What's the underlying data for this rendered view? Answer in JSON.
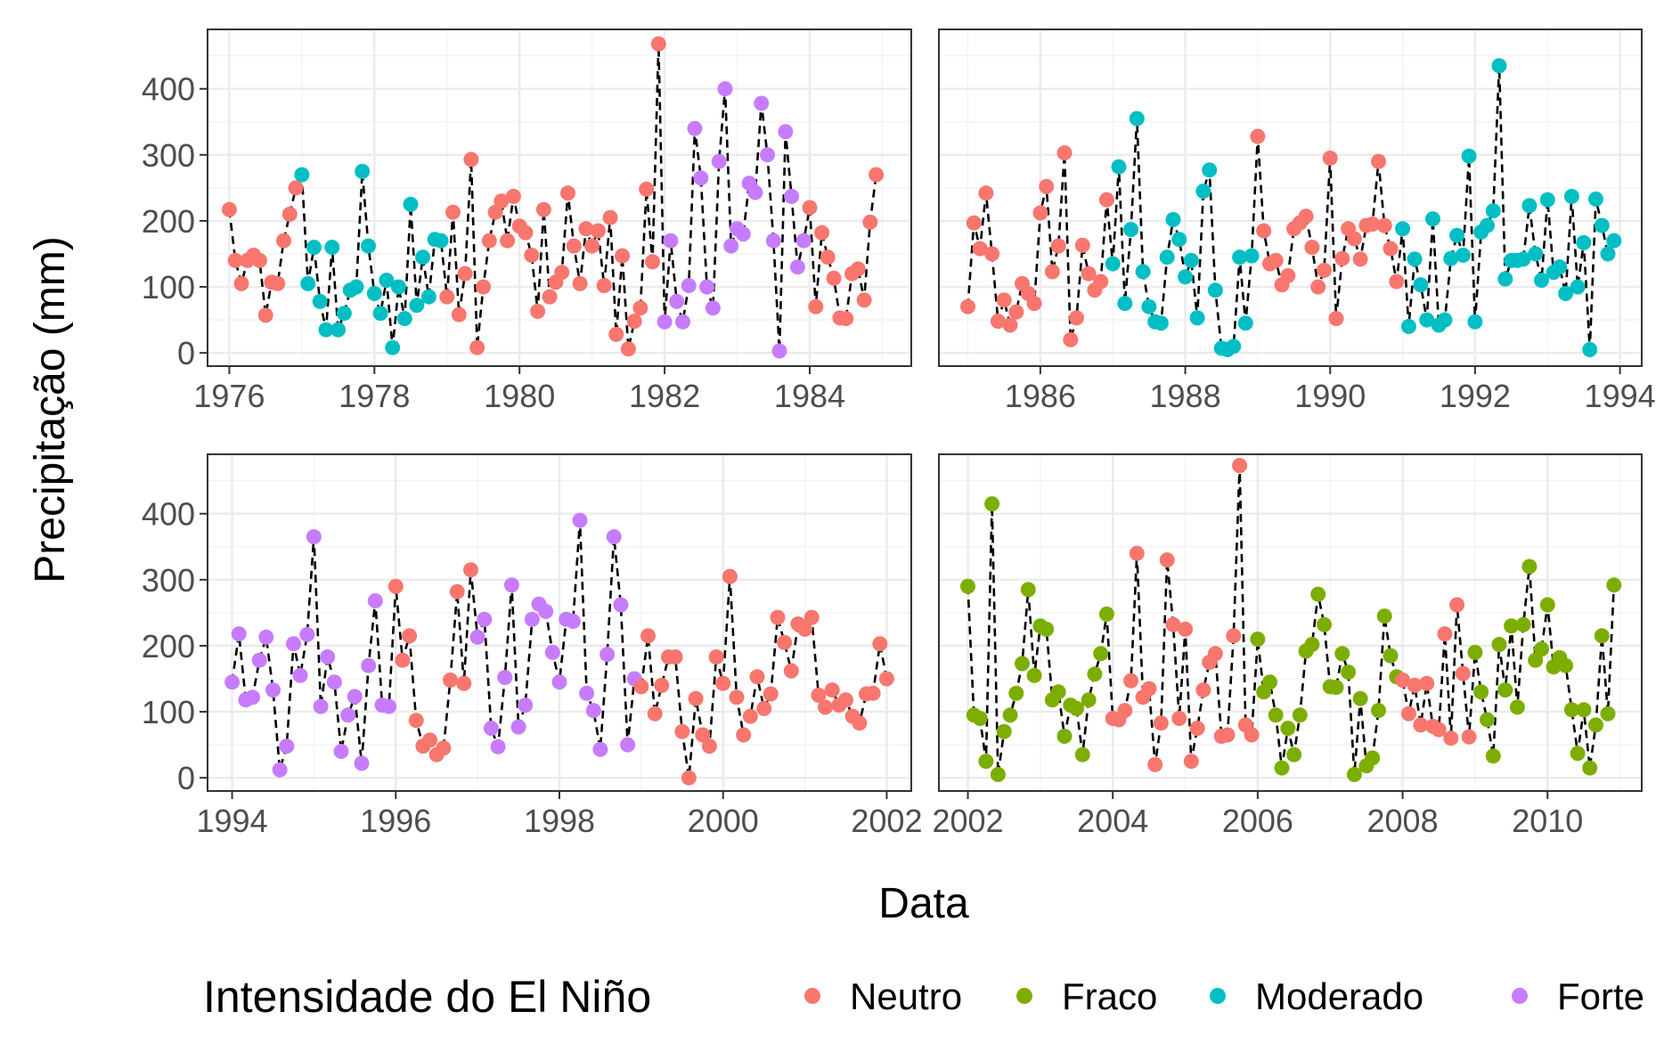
{
  "chart_data": {
    "type": "scatter",
    "ylabel": "Precipitação (mm)",
    "xlabel": "Data",
    "legend": {
      "title": "Intensidade do El Niño",
      "position": "bottom",
      "entries": [
        {
          "name": "Neutro",
          "color": "#F8766D"
        },
        {
          "name": "Fraco",
          "color": "#7CAE00"
        },
        {
          "name": "Moderado",
          "color": "#00BFC4"
        },
        {
          "name": "Forte",
          "color": "#C77CFF"
        }
      ]
    },
    "line_style": "dashed-black",
    "grid": true,
    "y_ticks": [
      "0",
      "100",
      "200",
      "300",
      "400"
    ],
    "ylim": [
      -20,
      490
    ],
    "panels": [
      {
        "xlim": [
          1975.7,
          1985.4
        ],
        "x_ticks": [
          "1976",
          "1978",
          "1980",
          "1982",
          "1984"
        ],
        "x_tick_values": [
          1976,
          1978,
          1980,
          1982,
          1984
        ],
        "start_year": 1976,
        "values": [
          217,
          140,
          105,
          140,
          148,
          140,
          57,
          107,
          105,
          170,
          210,
          250,
          270,
          105,
          160,
          78,
          35,
          160,
          35,
          60,
          95,
          100,
          275,
          162,
          90,
          60,
          110,
          8,
          100,
          52,
          225,
          72,
          145,
          85,
          172,
          170,
          85,
          213,
          58,
          120,
          293,
          8,
          100,
          170,
          213,
          230,
          170,
          237,
          192,
          182,
          148,
          63,
          217,
          85,
          107,
          122,
          242,
          162,
          105,
          188,
          162,
          185,
          102,
          205,
          28,
          147,
          6,
          48,
          68,
          248,
          138,
          468,
          47,
          170,
          78,
          47,
          102,
          340,
          265,
          100,
          68,
          290,
          400,
          162,
          188,
          180,
          257,
          243,
          378,
          300,
          170,
          3,
          335,
          237,
          130,
          170,
          220,
          70,
          182,
          145,
          113,
          53,
          52,
          120,
          127,
          80,
          198,
          270
        ],
        "classes": [
          0,
          0,
          0,
          0,
          0,
          0,
          0,
          0,
          0,
          0,
          0,
          0,
          2,
          2,
          2,
          2,
          2,
          2,
          2,
          2,
          2,
          2,
          2,
          2,
          2,
          2,
          2,
          2,
          2,
          2,
          2,
          2,
          2,
          2,
          2,
          2,
          0,
          0,
          0,
          0,
          0,
          0,
          0,
          0,
          0,
          0,
          0,
          0,
          0,
          0,
          0,
          0,
          0,
          0,
          0,
          0,
          0,
          0,
          0,
          0,
          0,
          0,
          0,
          0,
          0,
          0,
          0,
          0,
          0,
          0,
          0,
          0,
          3,
          3,
          3,
          3,
          3,
          3,
          3,
          3,
          3,
          3,
          3,
          3,
          3,
          3,
          3,
          3,
          3,
          3,
          3,
          3,
          3,
          3,
          3,
          3,
          0,
          0,
          0,
          0,
          0,
          0,
          0,
          0,
          0,
          0,
          0,
          0
        ]
      },
      {
        "xlim": [
          1984.6,
          1994.3
        ],
        "x_ticks": [
          "1986",
          "1988",
          "1990",
          "1992",
          "1994"
        ],
        "x_tick_values": [
          1986,
          1988,
          1990,
          1992,
          1994
        ],
        "start_year": 1985,
        "values": [
          70,
          197,
          158,
          242,
          150,
          48,
          80,
          42,
          62,
          105,
          90,
          75,
          212,
          252,
          123,
          162,
          303,
          20,
          53,
          163,
          120,
          95,
          108,
          232,
          135,
          282,
          75,
          187,
          355,
          123,
          70,
          47,
          45,
          145,
          202,
          172,
          115,
          140,
          53,
          245,
          277,
          95,
          7,
          5,
          10,
          145,
          45,
          147,
          328,
          185,
          135,
          140,
          103,
          117,
          188,
          197,
          207,
          160,
          100,
          125,
          295,
          52,
          143,
          188,
          173,
          142,
          193,
          195,
          290,
          193,
          158,
          108,
          188,
          40,
          142,
          103,
          50,
          203,
          42,
          50,
          143,
          178,
          148,
          298,
          47,
          183,
          193,
          215,
          435,
          112,
          140,
          140,
          142,
          223,
          150,
          110,
          232,
          122,
          130,
          90,
          237,
          100,
          167,
          5,
          233,
          193,
          150,
          170
        ],
        "classes": [
          0,
          0,
          0,
          0,
          0,
          0,
          0,
          0,
          0,
          0,
          0,
          0,
          0,
          0,
          0,
          0,
          0,
          0,
          0,
          0,
          0,
          0,
          0,
          0,
          2,
          2,
          2,
          2,
          2,
          2,
          2,
          2,
          2,
          2,
          2,
          2,
          2,
          2,
          2,
          2,
          2,
          2,
          2,
          2,
          2,
          2,
          2,
          2,
          0,
          0,
          0,
          0,
          0,
          0,
          0,
          0,
          0,
          0,
          0,
          0,
          0,
          0,
          0,
          0,
          0,
          0,
          0,
          0,
          0,
          0,
          0,
          0,
          2,
          2,
          2,
          2,
          2,
          2,
          2,
          2,
          2,
          2,
          2,
          2,
          2,
          2,
          2,
          2,
          2,
          2,
          2,
          2,
          2,
          2,
          2,
          2,
          2,
          2,
          2,
          2,
          2,
          2,
          2,
          2,
          2,
          2,
          2,
          2
        ]
      },
      {
        "xlim": [
          1993.7,
          2002.3
        ],
        "x_ticks": [
          "1994",
          "1996",
          "1998",
          "2000",
          "2002"
        ],
        "x_tick_values": [
          1994,
          1996,
          1998,
          2000,
          2002
        ],
        "start_year": 1994,
        "values": [
          145,
          218,
          118,
          122,
          178,
          213,
          133,
          12,
          48,
          203,
          155,
          217,
          365,
          108,
          183,
          145,
          40,
          95,
          123,
          22,
          170,
          268,
          110,
          108,
          290,
          178,
          215,
          87,
          48,
          57,
          35,
          45,
          148,
          282,
          143,
          315,
          213,
          240,
          75,
          47,
          152,
          292,
          77,
          110,
          240,
          263,
          252,
          190,
          145,
          240,
          237,
          390,
          128,
          102,
          43,
          187,
          365,
          262,
          50,
          150,
          138,
          215,
          97,
          140,
          183,
          183,
          70,
          0,
          120,
          65,
          48,
          183,
          143,
          305,
          122,
          65,
          93,
          153,
          105,
          127,
          243,
          205,
          162,
          233,
          225,
          243,
          125,
          107,
          133,
          110,
          118,
          93,
          83,
          127,
          128,
          203,
          150
        ],
        "classes": [
          3,
          3,
          3,
          3,
          3,
          3,
          3,
          3,
          3,
          3,
          3,
          3,
          3,
          3,
          3,
          3,
          3,
          3,
          3,
          3,
          3,
          3,
          3,
          3,
          0,
          0,
          0,
          0,
          0,
          0,
          0,
          0,
          0,
          0,
          0,
          0,
          3,
          3,
          3,
          3,
          3,
          3,
          3,
          3,
          3,
          3,
          3,
          3,
          3,
          3,
          3,
          3,
          3,
          3,
          3,
          3,
          3,
          3,
          3,
          3,
          0,
          0,
          0,
          0,
          0,
          0,
          0,
          0,
          0,
          0,
          0,
          0,
          0,
          0,
          0,
          0,
          0,
          0,
          0,
          0,
          0,
          0,
          0,
          0,
          0,
          0,
          0,
          0,
          0,
          0,
          0,
          0,
          0,
          0,
          0,
          0,
          0
        ]
      },
      {
        "xlim": [
          2001.6,
          2011.3
        ],
        "x_ticks": [
          "2002",
          "2004",
          "2006",
          "2008",
          "2010"
        ],
        "x_tick_values": [
          2002,
          2004,
          2006,
          2008,
          2010
        ],
        "start_year": 2002,
        "values": [
          290,
          95,
          90,
          25,
          415,
          5,
          70,
          95,
          128,
          173,
          285,
          155,
          230,
          225,
          118,
          130,
          63,
          110,
          105,
          35,
          118,
          157,
          188,
          248,
          90,
          88,
          102,
          147,
          340,
          122,
          135,
          20,
          83,
          330,
          232,
          90,
          225,
          25,
          75,
          133,
          175,
          188,
          63,
          65,
          215,
          473,
          80,
          65,
          210,
          130,
          145,
          95,
          15,
          75,
          35,
          95,
          192,
          202,
          278,
          232,
          138,
          137,
          188,
          160,
          5,
          120,
          18,
          30,
          102,
          245,
          185,
          153,
          148,
          97,
          140,
          80,
          143,
          78,
          73,
          218,
          60,
          262,
          158,
          62,
          190,
          130,
          88,
          33,
          202,
          133,
          230,
          107,
          232,
          320,
          178,
          195,
          262,
          168,
          182,
          170,
          103,
          37,
          103,
          15,
          80,
          215,
          97,
          292
        ],
        "classes": [
          1,
          1,
          1,
          1,
          1,
          1,
          1,
          1,
          1,
          1,
          1,
          1,
          1,
          1,
          1,
          1,
          1,
          1,
          1,
          1,
          1,
          1,
          1,
          1,
          0,
          0,
          0,
          0,
          0,
          0,
          0,
          0,
          0,
          0,
          0,
          0,
          0,
          0,
          0,
          0,
          0,
          0,
          0,
          0,
          0,
          0,
          0,
          0,
          1,
          1,
          1,
          1,
          1,
          1,
          1,
          1,
          1,
          1,
          1,
          1,
          1,
          1,
          1,
          1,
          1,
          1,
          1,
          1,
          1,
          1,
          1,
          1,
          0,
          0,
          0,
          0,
          0,
          0,
          0,
          0,
          0,
          0,
          0,
          0,
          1,
          1,
          1,
          1,
          1,
          1,
          1,
          1,
          1,
          1,
          1,
          1,
          1,
          1,
          1,
          1,
          1,
          1,
          1,
          1,
          1,
          1,
          1,
          1
        ]
      }
    ]
  }
}
